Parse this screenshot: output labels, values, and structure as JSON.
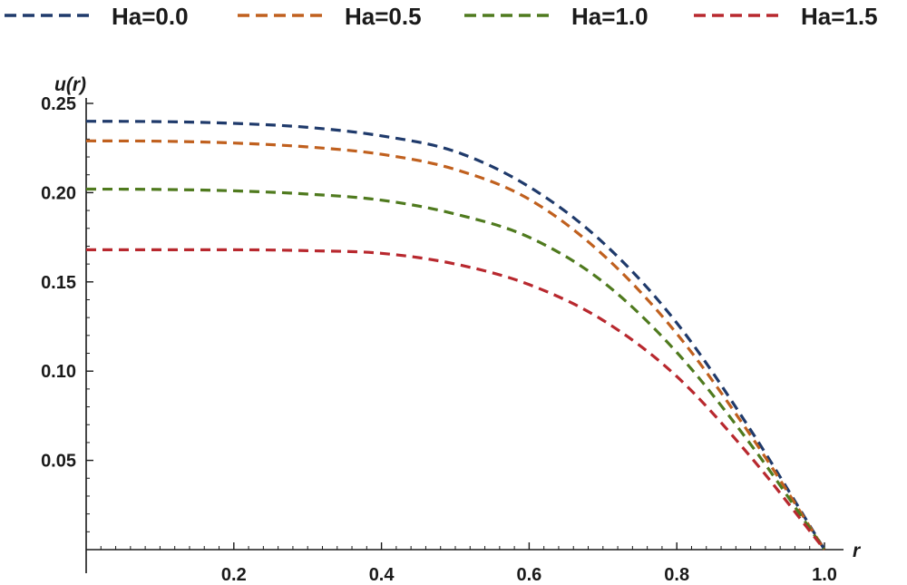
{
  "chart_data": {
    "type": "line",
    "xlabel": "r",
    "ylabel": "u(r)",
    "xlim": [
      0,
      1.0
    ],
    "ylim": [
      0,
      0.25
    ],
    "x_ticks": [
      {
        "value": 0.2,
        "label": "0.2"
      },
      {
        "value": 0.4,
        "label": "0.4"
      },
      {
        "value": 0.6,
        "label": "0.6"
      },
      {
        "value": 0.8,
        "label": "0.8"
      },
      {
        "value": 1.0,
        "label": "1.0"
      }
    ],
    "y_ticks": [
      {
        "value": 0.05,
        "label": "0.05"
      },
      {
        "value": 0.1,
        "label": "0.10"
      },
      {
        "value": 0.15,
        "label": "0.15"
      },
      {
        "value": 0.2,
        "label": "0.20"
      },
      {
        "value": 0.25,
        "label": "0.25"
      }
    ],
    "grid": false,
    "legend_position": "top",
    "line_style": "dashed",
    "series": [
      {
        "name": "Ha=0.0",
        "color": "#1f3a6b",
        "x": [
          0,
          0.1,
          0.2,
          0.3,
          0.4,
          0.5,
          0.6,
          0.7,
          0.8,
          0.9,
          1.0
        ],
        "y": [
          0.24,
          0.2398,
          0.2388,
          0.2366,
          0.2318,
          0.223,
          0.2033,
          0.172,
          0.127,
          0.067,
          0.0
        ]
      },
      {
        "name": "Ha=0.5",
        "color": "#c0601e",
        "x": [
          0,
          0.1,
          0.2,
          0.3,
          0.4,
          0.5,
          0.6,
          0.7,
          0.8,
          0.9,
          1.0
        ],
        "y": [
          0.229,
          0.2288,
          0.2278,
          0.2256,
          0.2215,
          0.213,
          0.1963,
          0.1652,
          0.121,
          0.064,
          0.0
        ]
      },
      {
        "name": "Ha=1.0",
        "color": "#4f7a1e",
        "x": [
          0,
          0.1,
          0.2,
          0.3,
          0.4,
          0.5,
          0.6,
          0.7,
          0.8,
          0.9,
          1.0
        ],
        "y": [
          0.202,
          0.2018,
          0.201,
          0.1992,
          0.1958,
          0.188,
          0.175,
          0.15,
          0.1105,
          0.059,
          0.0
        ]
      },
      {
        "name": "Ha=1.5",
        "color": "#b8282e",
        "x": [
          0,
          0.1,
          0.2,
          0.3,
          0.4,
          0.5,
          0.6,
          0.7,
          0.8,
          0.9,
          1.0
        ],
        "y": [
          0.168,
          0.168,
          0.168,
          0.1675,
          0.166,
          0.16,
          0.1485,
          0.1285,
          0.097,
          0.052,
          0.0
        ]
      }
    ]
  }
}
